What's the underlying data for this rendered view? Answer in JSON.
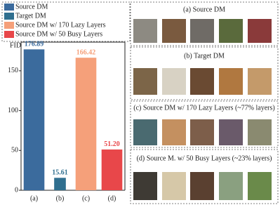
{
  "chart_data": {
    "type": "bar",
    "ylabel": "FID",
    "categories": [
      "(a)",
      "(b)",
      "(c)",
      "(d)"
    ],
    "values": [
      176.89,
      15.61,
      166.42,
      51.2
    ],
    "value_labels": [
      "176.89",
      "15.61",
      "166.42",
      "51.20"
    ],
    "colors": [
      "#3b6b9d",
      "#2f6f8f",
      "#f5a07a",
      "#e8474a"
    ],
    "legend": [
      "Source DM",
      "Target DM",
      "Source DM w/ 170 Lazy Layers",
      "Source DM w/ 50 Busy Layers"
    ],
    "ylim": [
      0,
      186
    ],
    "yticks": [
      0,
      50,
      100,
      150
    ],
    "grid": false
  },
  "panels": [
    {
      "title": "(a) Source DM"
    },
    {
      "title": "(b) Target DM"
    },
    {
      "title": "(c) Source DM w/ 170 Lazy Layers (~77% layers)"
    },
    {
      "title": "(d) Source M. w/ 50 Busy Layers (~23% layers)"
    }
  ]
}
